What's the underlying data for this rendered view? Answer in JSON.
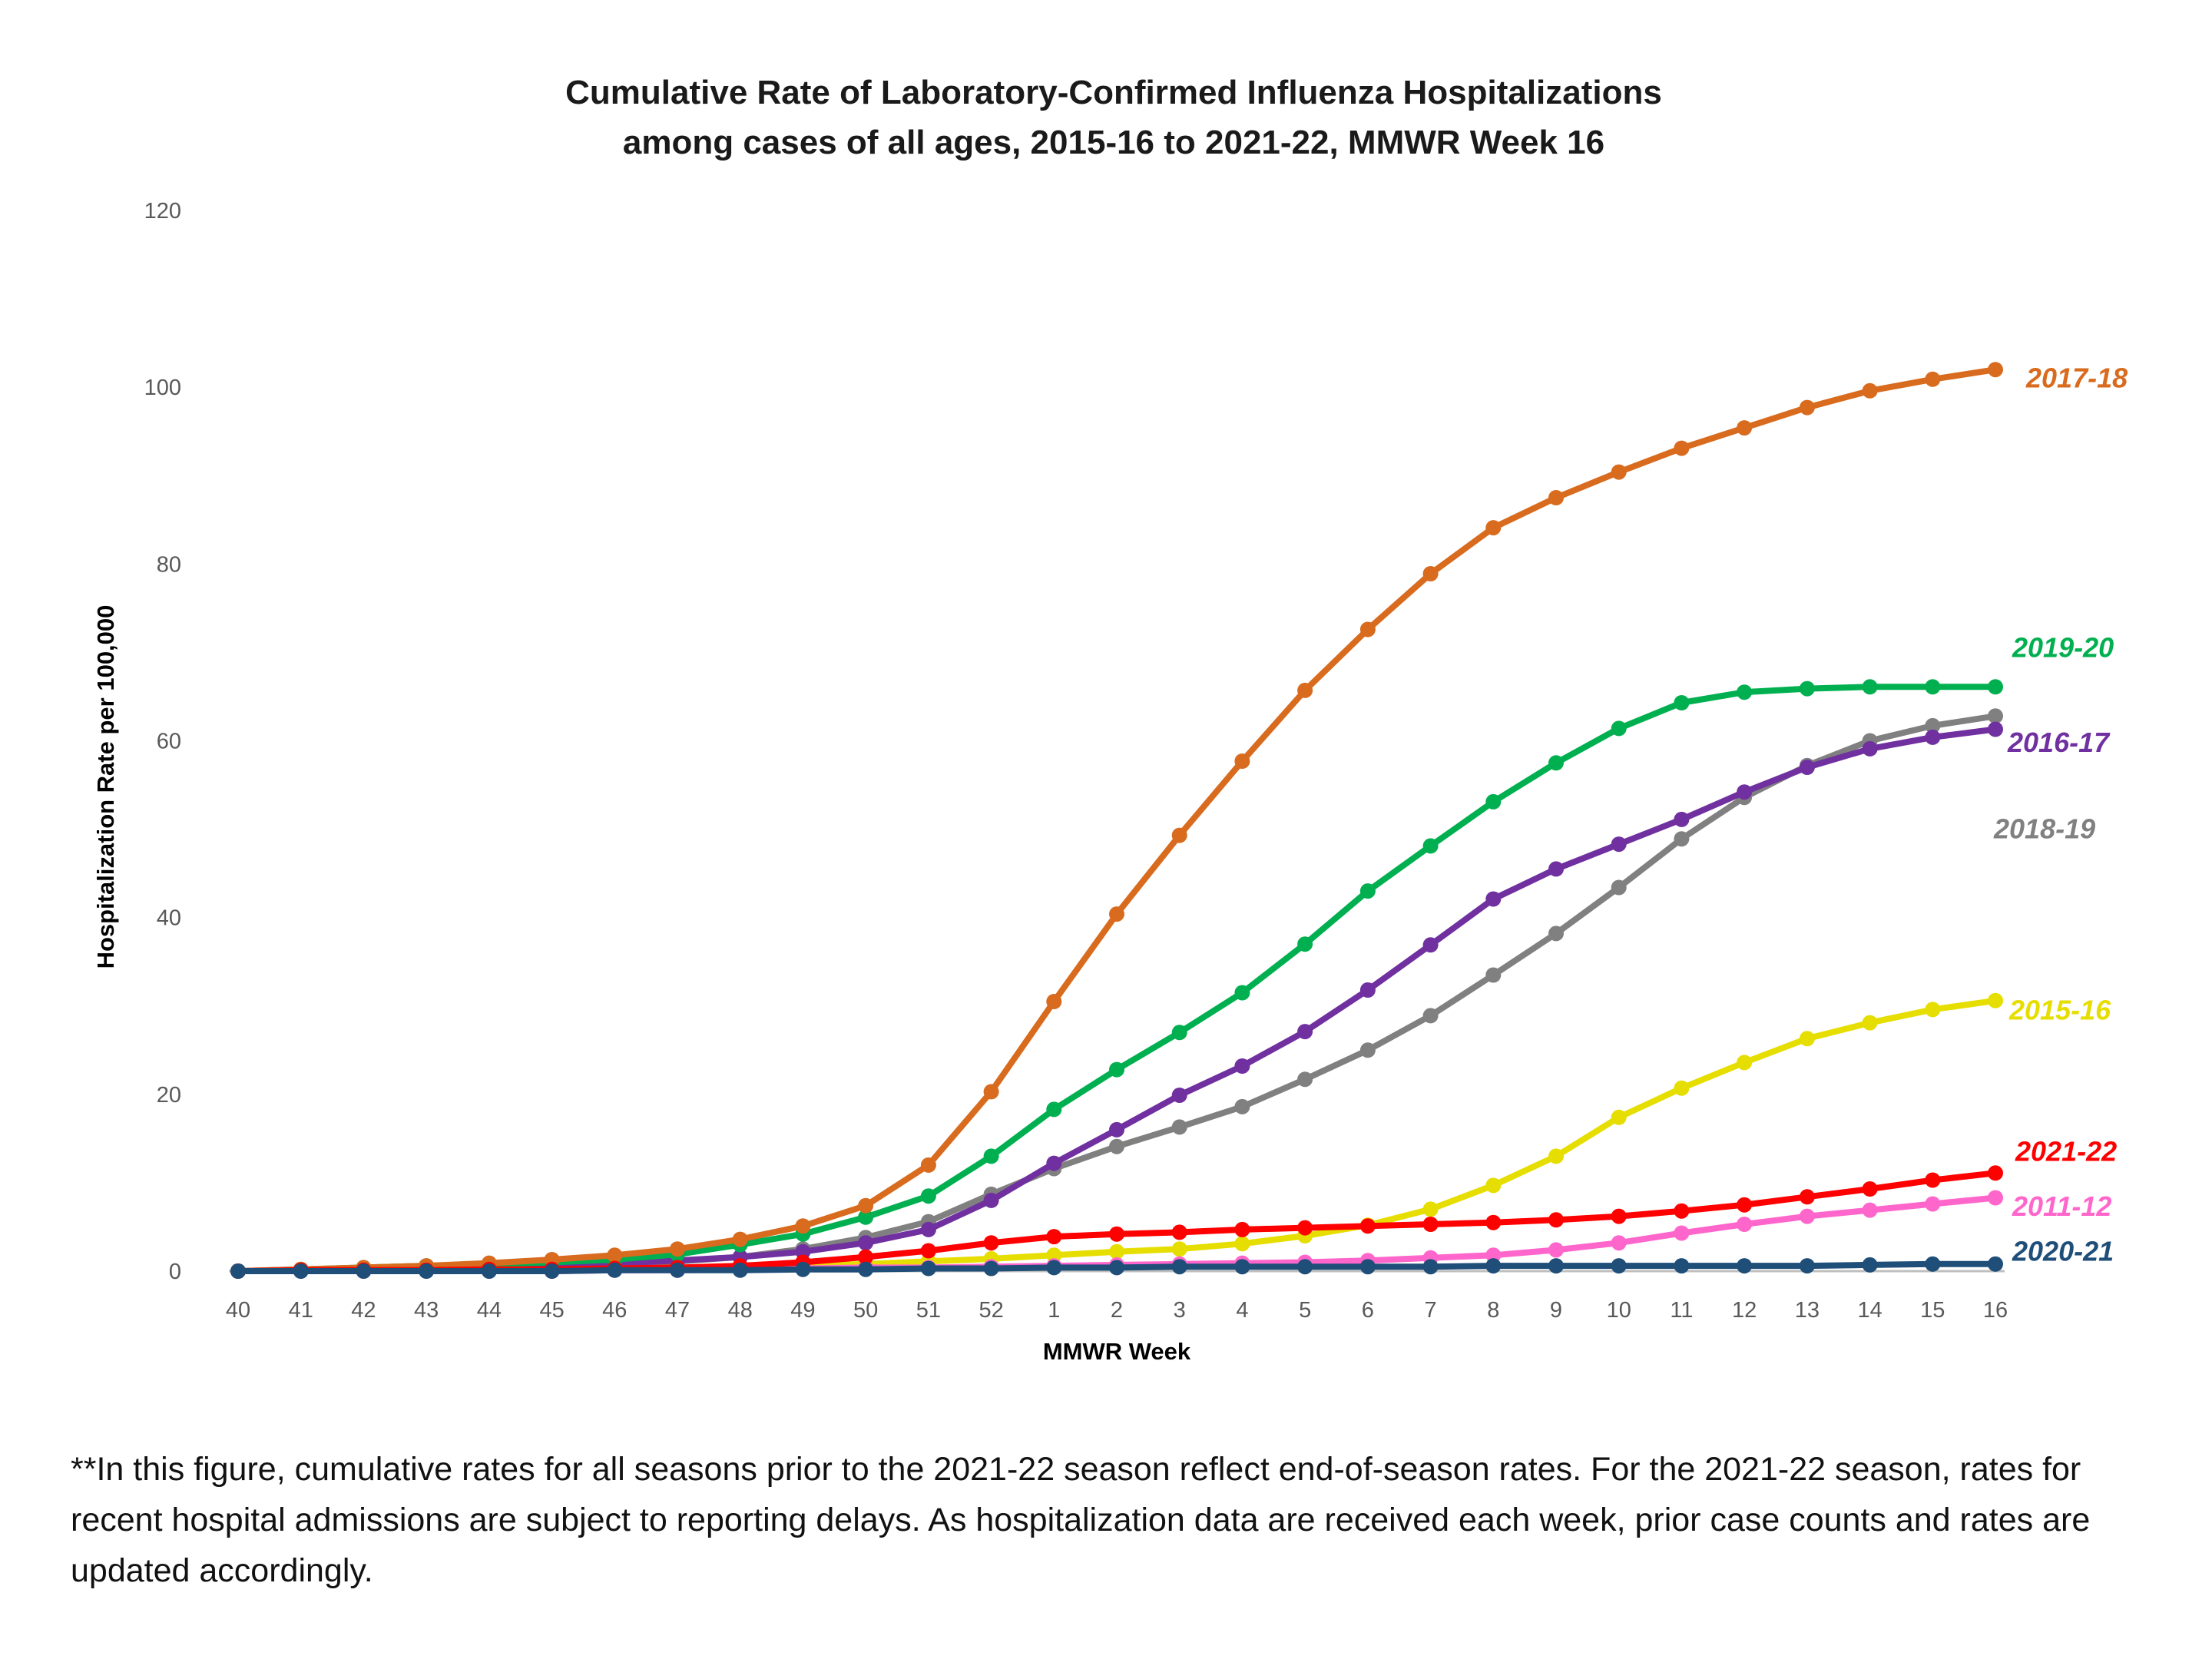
{
  "chart_data": {
    "type": "line",
    "title": [
      "Cumulative Rate of Laboratory-Confirmed Influenza Hospitalizations",
      "among cases of all ages, 2015-16 to 2021-22, MMWR  Week 16"
    ],
    "xlabel": "MMWR Week",
    "ylabel": "Hospitalization  Rate per 100,000",
    "ylim": [
      0,
      120
    ],
    "yticks": [
      0,
      20,
      40,
      60,
      80,
      100,
      120
    ],
    "categories": [
      "40",
      "41",
      "42",
      "43",
      "44",
      "45",
      "46",
      "47",
      "48",
      "49",
      "50",
      "51",
      "52",
      "1",
      "2",
      "3",
      "4",
      "5",
      "6",
      "7",
      "8",
      "9",
      "10",
      "11",
      "12",
      "13",
      "14",
      "15",
      "16"
    ],
    "grid": false,
    "legend": "labels at line ends",
    "series": [
      {
        "name": "2015-16",
        "color": "#E6DE00",
        "values": [
          0,
          0.1,
          0.1,
          0.1,
          0.2,
          0.2,
          0.3,
          0.3,
          0.4,
          0.6,
          0.8,
          1.1,
          1.4,
          1.8,
          2.2,
          2.5,
          3.1,
          4.0,
          5.2,
          7.0,
          9.7,
          13.0,
          17.4,
          20.7,
          23.6,
          26.3,
          28.1,
          29.6,
          30.6
        ]
      },
      {
        "name": "2016-17",
        "color": "#7030A0",
        "values": [
          0,
          0.1,
          0.2,
          0.3,
          0.5,
          0.7,
          0.9,
          1.2,
          1.6,
          2.2,
          3.2,
          4.7,
          8.0,
          12.2,
          16.0,
          19.9,
          23.2,
          27.1,
          31.8,
          36.9,
          42.1,
          45.5,
          48.3,
          51.1,
          54.2,
          57.0,
          59.1,
          60.4,
          61.3
        ]
      },
      {
        "name": "2017-18",
        "color": "#D86B1E",
        "values": [
          0,
          0.2,
          0.4,
          0.6,
          0.9,
          1.3,
          1.8,
          2.5,
          3.6,
          5.1,
          7.4,
          12.0,
          20.3,
          30.5,
          40.4,
          49.3,
          57.7,
          65.7,
          72.6,
          78.9,
          84.1,
          87.5,
          90.4,
          93.1,
          95.4,
          97.7,
          99.6,
          100.9,
          102.0
        ]
      },
      {
        "name": "2018-19",
        "color": "#808080",
        "values": [
          0,
          0.1,
          0.2,
          0.3,
          0.5,
          0.6,
          0.8,
          1.1,
          1.6,
          2.5,
          3.8,
          5.6,
          8.7,
          11.6,
          14.1,
          16.3,
          18.6,
          21.7,
          25.0,
          28.9,
          33.5,
          38.2,
          43.4,
          48.9,
          53.6,
          57.2,
          60.0,
          61.7,
          62.8
        ]
      },
      {
        "name": "2019-20",
        "color": "#00B050",
        "values": [
          0,
          0.2,
          0.4,
          0.6,
          0.8,
          1.0,
          1.3,
          1.9,
          3.0,
          4.2,
          6.1,
          8.5,
          13.0,
          18.3,
          22.8,
          27.0,
          31.5,
          37.0,
          43.0,
          48.1,
          53.1,
          57.5,
          61.4,
          64.3,
          65.5,
          65.9,
          66.1,
          66.1,
          66.1
        ]
      },
      {
        "name": "2020-21",
        "color": "#1F4E79",
        "values": [
          0,
          0,
          0,
          0,
          0,
          0,
          0.1,
          0.1,
          0.1,
          0.2,
          0.2,
          0.3,
          0.3,
          0.4,
          0.4,
          0.5,
          0.5,
          0.5,
          0.5,
          0.5,
          0.6,
          0.6,
          0.6,
          0.6,
          0.6,
          0.6,
          0.7,
          0.8,
          0.8
        ]
      },
      {
        "name": "2021-22",
        "color": "#FF0000",
        "values": [
          0,
          0.1,
          0.1,
          0.1,
          0.2,
          0.2,
          0.3,
          0.4,
          0.6,
          1.0,
          1.6,
          2.3,
          3.2,
          3.9,
          4.2,
          4.4,
          4.7,
          4.9,
          5.1,
          5.3,
          5.5,
          5.8,
          6.2,
          6.8,
          7.5,
          8.4,
          9.3,
          10.3,
          11.1
        ]
      },
      {
        "name": "2011-12",
        "color": "#FF66CC",
        "values": [
          0,
          0,
          0,
          0,
          0,
          0,
          0.1,
          0.1,
          0.2,
          0.3,
          0.4,
          0.4,
          0.5,
          0.6,
          0.7,
          0.8,
          0.9,
          1.0,
          1.2,
          1.5,
          1.8,
          2.4,
          3.2,
          4.3,
          5.3,
          6.2,
          6.9,
          7.6,
          8.3
        ]
      }
    ],
    "line_labels": [
      {
        "text": "2017-18",
        "color": "#D86B1E"
      },
      {
        "text": "2019-20",
        "color": "#00B050"
      },
      {
        "text": "2016-17",
        "color": "#7030A0"
      },
      {
        "text": "2018-19",
        "color": "#808080"
      },
      {
        "text": "2015-16",
        "color": "#E6DE00"
      },
      {
        "text": "2021-22",
        "color": "#FF0000"
      },
      {
        "text": "2011-12",
        "color": "#FF66CC"
      },
      {
        "text": "2020-21",
        "color": "#1F4E79"
      }
    ]
  },
  "footnote": "**In this figure, cumulative rates for all seasons prior to the 2021-22 season reflect end-of-season rates. For the 2021-22 season, rates for recent hospital admissions are subject to reporting delays. As hospitalization data are received each week, prior case counts and rates are updated accordingly."
}
